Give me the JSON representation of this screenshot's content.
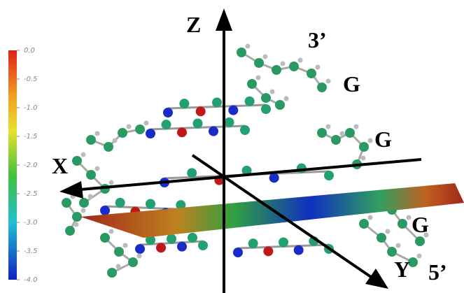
{
  "colorbar": {
    "ticks": [
      {
        "value": 0,
        "label": "0.0"
      },
      {
        "value": -0.5,
        "label": "-0.5"
      },
      {
        "value": -1,
        "label": "-1.0"
      },
      {
        "value": -1.5,
        "label": "-1.5"
      },
      {
        "value": -2,
        "label": "-2.0"
      },
      {
        "value": -2.5,
        "label": "-2.5"
      },
      {
        "value": -3,
        "label": "-3.0"
      },
      {
        "value": -3.5,
        "label": "-3.5"
      },
      {
        "value": -4,
        "label": "-4.0"
      }
    ]
  },
  "axes": {
    "x": "X",
    "y": "Y",
    "z": "Z"
  },
  "labels": {
    "three_prime": "3’",
    "five_prime": "5’",
    "bases": [
      "G",
      "G",
      "G"
    ]
  }
}
